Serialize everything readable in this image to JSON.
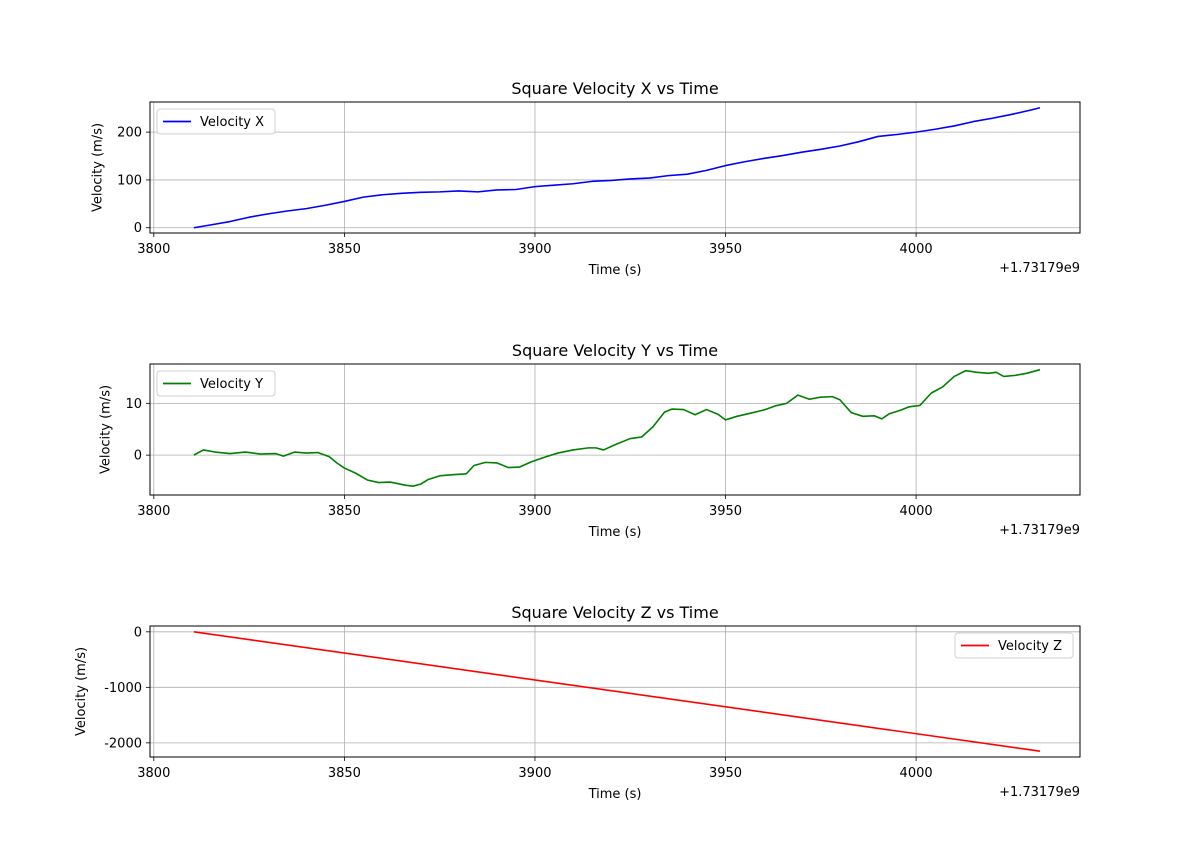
{
  "chart_data": [
    {
      "type": "line",
      "title": "Square Velocity X vs Time",
      "xlabel": "Time (s)",
      "ylabel": "Velocity (m/s)",
      "x_offset_label": "+1.73179e9",
      "xlim": [
        3799,
        4043
      ],
      "ylim": [
        -11,
        263
      ],
      "xticks": [
        3800,
        3850,
        3900,
        3950,
        4000
      ],
      "yticks": [
        0,
        100,
        200
      ],
      "grid": true,
      "legend_position": "upper left",
      "series": [
        {
          "name": "Velocity X",
          "color": "#0000ff",
          "x": [
            3810.5,
            3815,
            3820,
            3825,
            3830,
            3835,
            3840,
            3845,
            3850,
            3855,
            3860,
            3865,
            3870,
            3875,
            3880,
            3885,
            3890,
            3895,
            3900,
            3905,
            3910,
            3915,
            3920,
            3925,
            3930,
            3935,
            3940,
            3945,
            3950,
            3955,
            3960,
            3965,
            3970,
            3975,
            3980,
            3985,
            3990,
            3995,
            4000,
            4005,
            4010,
            4015,
            4020,
            4025,
            4030,
            4032.5
          ],
          "y": [
            0,
            6,
            13,
            22,
            29,
            35,
            40,
            47,
            55,
            64,
            69,
            72,
            74,
            75,
            77,
            75,
            79,
            80,
            86,
            89,
            92,
            97,
            99,
            102,
            104,
            109,
            112,
            120,
            130,
            138,
            145,
            151,
            158,
            164,
            171,
            180,
            191,
            195,
            200,
            206,
            213,
            222,
            229,
            237,
            246,
            251
          ]
        }
      ]
    },
    {
      "type": "line",
      "title": "Square Velocity Y vs Time",
      "xlabel": "Time (s)",
      "ylabel": "Velocity (m/s)",
      "x_offset_label": "+1.73179e9",
      "xlim": [
        3799,
        4043
      ],
      "ylim": [
        -7.7,
        17.6
      ],
      "xticks": [
        3800,
        3850,
        3900,
        3950,
        4000
      ],
      "yticks": [
        0,
        10
      ],
      "grid": true,
      "legend_position": "upper left",
      "series": [
        {
          "name": "Velocity Y",
          "color": "#008000",
          "x": [
            3810.5,
            3813,
            3816,
            3820,
            3824,
            3828,
            3832,
            3834,
            3837,
            3840,
            3843,
            3846,
            3848,
            3850,
            3853,
            3856,
            3859,
            3862,
            3866,
            3868,
            3870,
            3872,
            3875,
            3878,
            3882,
            3884,
            3887,
            3890,
            3893,
            3896,
            3899,
            3903,
            3906,
            3910,
            3914,
            3916,
            3918,
            3921,
            3925,
            3928,
            3931,
            3934,
            3936,
            3939,
            3942,
            3945,
            3948,
            3950,
            3953,
            3956,
            3960,
            3963,
            3966,
            3969,
            3972,
            3975,
            3978,
            3980,
            3983,
            3986,
            3989,
            3991,
            3993,
            3996,
            3998,
            4001,
            4004,
            4007,
            4010,
            4013,
            4016,
            4019,
            4021,
            4023,
            4026,
            4029,
            4032.5
          ],
          "y": [
            0,
            1,
            0.6,
            0.3,
            0.6,
            0.2,
            0.3,
            -0.2,
            0.6,
            0.4,
            0.5,
            -0.3,
            -1.5,
            -2.5,
            -3.5,
            -4.8,
            -5.3,
            -5.2,
            -5.8,
            -6,
            -5.6,
            -4.7,
            -4,
            -3.8,
            -3.6,
            -2,
            -1.4,
            -1.5,
            -2.4,
            -2.3,
            -1.3,
            -0.3,
            0.4,
            1,
            1.4,
            1.4,
            1,
            2,
            3.2,
            3.5,
            5.5,
            8.3,
            8.9,
            8.8,
            7.8,
            8.8,
            7.9,
            6.8,
            7.5,
            8,
            8.7,
            9.5,
            10,
            11.6,
            10.8,
            11.2,
            11.3,
            10.7,
            8.2,
            7.5,
            7.6,
            7,
            8,
            8.7,
            9.3,
            9.6,
            12,
            13.2,
            15.2,
            16.3,
            16,
            15.8,
            16,
            15.2,
            15.4,
            15.8,
            16.5
          ]
        }
      ]
    },
    {
      "type": "line",
      "title": "Square Velocity Z vs Time",
      "xlabel": "Time (s)",
      "ylabel": "Velocity (m/s)",
      "x_offset_label": "+1.73179e9",
      "xlim": [
        3799,
        4043
      ],
      "ylim": [
        -2255,
        105
      ],
      "xticks": [
        3800,
        3850,
        3900,
        3950,
        4000
      ],
      "yticks": [
        0,
        -1000,
        -2000
      ],
      "grid": true,
      "legend_position": "upper right",
      "series": [
        {
          "name": "Velocity Z",
          "color": "#ff0000",
          "x": [
            3810.5,
            4032.5
          ],
          "y": [
            0,
            -2150
          ]
        }
      ]
    }
  ]
}
